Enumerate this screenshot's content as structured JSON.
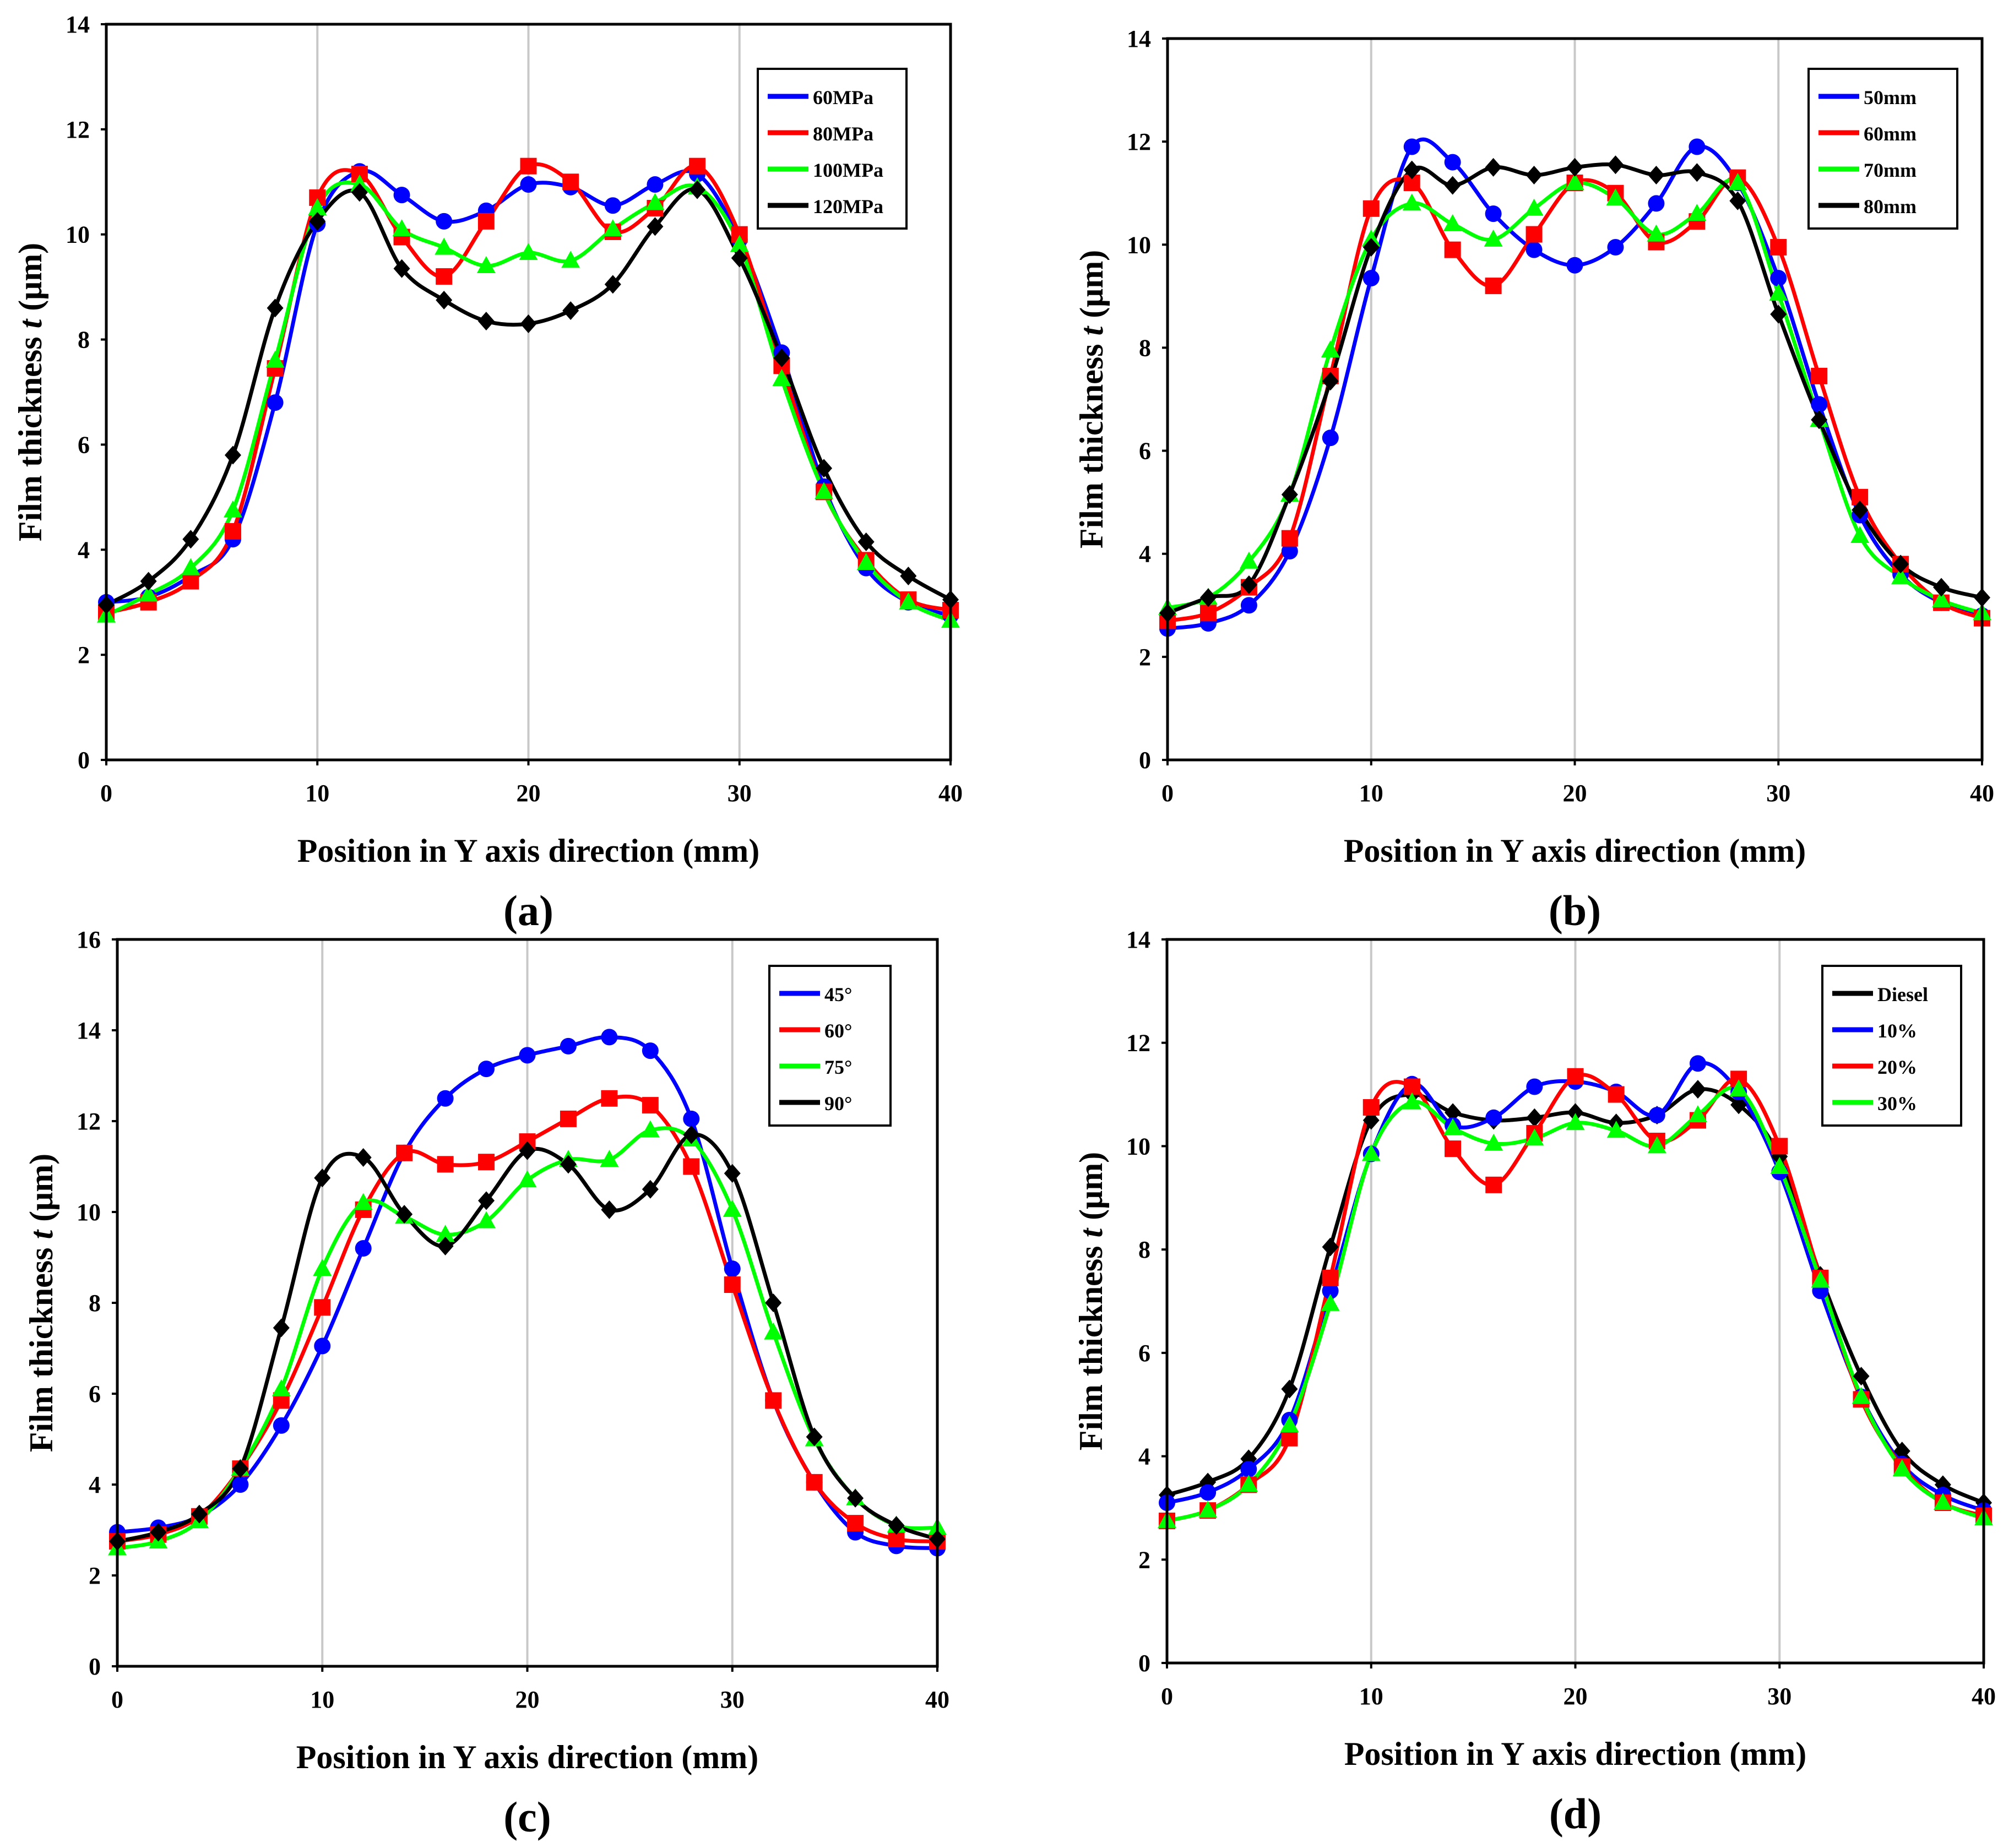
{
  "figure": {
    "panels": [
      "(a)",
      "(b)",
      "(c)",
      "(d)"
    ]
  },
  "chart_data": [
    {
      "type": "line",
      "panel_label": "(a)",
      "xlabel": "Position in Y axis direction (mm)",
      "ylabel_prefix": "Film thickness ",
      "ylabel_var": "t",
      "ylabel_suffix": " (μm)",
      "xlim": [
        0,
        40
      ],
      "ylim": [
        0,
        14
      ],
      "xticks": [
        0,
        10,
        20,
        30,
        40
      ],
      "yticks": [
        0,
        2,
        4,
        6,
        8,
        10,
        12,
        14
      ],
      "grid": "vertical",
      "legend_position": "top-right",
      "x": [
        0,
        2,
        4,
        6,
        8,
        10,
        12,
        14,
        16,
        18,
        20,
        22,
        24,
        26,
        28,
        30,
        32,
        34,
        36,
        38,
        40
      ],
      "series": [
        {
          "name": "60MPa",
          "color": "#0000ff",
          "marker": "circle",
          "values": [
            3.0,
            3.1,
            3.5,
            4.2,
            6.8,
            10.2,
            11.2,
            10.75,
            10.25,
            10.45,
            10.95,
            10.9,
            10.55,
            10.95,
            11.15,
            9.9,
            7.75,
            5.2,
            3.65,
            3.0,
            2.75
          ]
        },
        {
          "name": "80MPa",
          "color": "#ff0000",
          "marker": "square",
          "values": [
            2.8,
            3.0,
            3.4,
            4.35,
            7.45,
            10.7,
            11.15,
            9.95,
            9.2,
            10.25,
            11.3,
            11.0,
            10.05,
            10.5,
            11.3,
            10.0,
            7.5,
            5.1,
            3.8,
            3.05,
            2.85
          ]
        },
        {
          "name": "100MPa",
          "color": "#00ff00",
          "marker": "triangle",
          "values": [
            2.75,
            3.15,
            3.65,
            4.75,
            7.6,
            10.5,
            10.95,
            10.1,
            9.75,
            9.4,
            9.65,
            9.5,
            10.1,
            10.6,
            10.9,
            9.8,
            7.25,
            5.1,
            3.75,
            3.0,
            2.65
          ]
        },
        {
          "name": "120MPa",
          "color": "#000000",
          "marker": "diamond",
          "values": [
            2.95,
            3.4,
            4.2,
            5.8,
            8.6,
            10.25,
            10.8,
            9.35,
            8.75,
            8.35,
            8.3,
            8.55,
            9.05,
            10.15,
            10.85,
            9.55,
            7.65,
            5.55,
            4.15,
            3.5,
            3.05
          ]
        }
      ]
    },
    {
      "type": "line",
      "panel_label": "(b)",
      "xlabel": "Position in Y axis direction (mm)",
      "ylabel_prefix": "Film thickness ",
      "ylabel_var": "t",
      "ylabel_suffix": " (μm)",
      "xlim": [
        0,
        40
      ],
      "ylim": [
        0,
        14
      ],
      "xticks": [
        0,
        10,
        20,
        30,
        40
      ],
      "yticks": [
        0,
        2,
        4,
        6,
        8,
        10,
        12,
        14
      ],
      "grid": "vertical",
      "legend_position": "top-right",
      "x": [
        0,
        2,
        4,
        6,
        8,
        10,
        12,
        14,
        16,
        18,
        20,
        22,
        24,
        26,
        28,
        30,
        32,
        34,
        36,
        38,
        40
      ],
      "series": [
        {
          "name": "50mm",
          "color": "#0000ff",
          "marker": "circle",
          "values": [
            2.55,
            2.65,
            3.0,
            4.05,
            6.25,
            9.35,
            11.9,
            11.6,
            10.6,
            9.9,
            9.6,
            9.95,
            10.8,
            11.9,
            11.2,
            9.35,
            6.9,
            4.75,
            3.6,
            3.05,
            2.8
          ]
        },
        {
          "name": "60mm",
          "color": "#ff0000",
          "marker": "square",
          "values": [
            2.7,
            2.85,
            3.35,
            4.3,
            7.45,
            10.7,
            11.2,
            9.9,
            9.2,
            10.2,
            11.2,
            11.0,
            10.05,
            10.45,
            11.3,
            9.95,
            7.45,
            5.1,
            3.8,
            3.05,
            2.75
          ]
        },
        {
          "name": "70mm",
          "color": "#00ff00",
          "marker": "triangle",
          "values": [
            2.95,
            3.15,
            3.85,
            5.15,
            7.95,
            10.1,
            10.8,
            10.4,
            10.1,
            10.7,
            11.2,
            10.9,
            10.2,
            10.6,
            11.2,
            9.05,
            6.6,
            4.35,
            3.55,
            3.1,
            2.85
          ]
        },
        {
          "name": "80mm",
          "color": "#000000",
          "marker": "diamond",
          "values": [
            2.85,
            3.15,
            3.4,
            5.15,
            7.35,
            9.95,
            11.45,
            11.15,
            11.5,
            11.35,
            11.5,
            11.55,
            11.35,
            11.4,
            10.85,
            8.65,
            6.6,
            4.85,
            3.8,
            3.35,
            3.15
          ]
        }
      ]
    },
    {
      "type": "line",
      "panel_label": "(c)",
      "xlabel": "Position in Y axis direction (mm)",
      "ylabel_prefix": "Film thickness ",
      "ylabel_var": "t",
      "ylabel_suffix": " (μm)",
      "xlim": [
        0,
        40
      ],
      "ylim": [
        0,
        16
      ],
      "xticks": [
        0,
        10,
        20,
        30,
        40
      ],
      "yticks": [
        0,
        2,
        4,
        6,
        8,
        10,
        12,
        14,
        16
      ],
      "grid": "vertical",
      "legend_position": "top-right",
      "x": [
        0,
        2,
        4,
        6,
        8,
        10,
        12,
        14,
        16,
        18,
        20,
        22,
        24,
        26,
        28,
        30,
        32,
        34,
        36,
        38,
        40
      ],
      "series": [
        {
          "name": "45°",
          "color": "#0000ff",
          "marker": "circle",
          "values": [
            2.95,
            3.05,
            3.3,
            4.0,
            5.3,
            7.05,
            9.2,
            11.3,
            12.5,
            13.15,
            13.45,
            13.65,
            13.85,
            13.55,
            12.05,
            8.75,
            5.85,
            4.05,
            2.95,
            2.65,
            2.6
          ]
        },
        {
          "name": "60°",
          "color": "#ff0000",
          "marker": "square",
          "values": [
            2.75,
            2.9,
            3.3,
            4.35,
            5.85,
            7.9,
            10.05,
            11.3,
            11.05,
            11.1,
            11.55,
            12.05,
            12.5,
            12.35,
            11.0,
            8.4,
            5.85,
            4.05,
            3.15,
            2.8,
            2.75
          ]
        },
        {
          "name": "75°",
          "color": "#00ff00",
          "marker": "triangle",
          "values": [
            2.6,
            2.75,
            3.2,
            4.35,
            6.1,
            8.75,
            10.2,
            9.9,
            9.5,
            9.8,
            10.7,
            11.15,
            11.15,
            11.8,
            11.6,
            10.05,
            7.35,
            5.0,
            3.7,
            3.1,
            3.05
          ]
        },
        {
          "name": "90°",
          "color": "#000000",
          "marker": "diamond",
          "values": [
            2.75,
            2.95,
            3.35,
            4.35,
            7.45,
            10.75,
            11.2,
            9.95,
            9.25,
            10.25,
            11.35,
            11.05,
            10.05,
            10.5,
            11.7,
            10.85,
            8.0,
            5.05,
            3.7,
            3.1,
            2.8
          ]
        }
      ]
    },
    {
      "type": "line",
      "panel_label": "(d)",
      "xlabel": "Position in Y axis direction (mm)",
      "ylabel_prefix": "Film thickness ",
      "ylabel_var": "t",
      "ylabel_suffix": " (μm)",
      "xlim": [
        0,
        40
      ],
      "ylim": [
        0,
        14
      ],
      "xticks": [
        0,
        10,
        20,
        30,
        40
      ],
      "yticks": [
        0,
        2,
        4,
        6,
        8,
        10,
        12,
        14
      ],
      "grid": "vertical",
      "legend_position": "top-right",
      "x": [
        0,
        2,
        4,
        6,
        8,
        10,
        12,
        14,
        16,
        18,
        20,
        22,
        24,
        26,
        28,
        30,
        32,
        34,
        36,
        38,
        40
      ],
      "series": [
        {
          "name": "Diesel",
          "color": "#000000",
          "marker": "diamond",
          "values": [
            3.25,
            3.5,
            3.95,
            5.3,
            8.05,
            10.5,
            11.0,
            10.65,
            10.5,
            10.55,
            10.65,
            10.45,
            10.6,
            11.1,
            10.8,
            9.8,
            7.5,
            5.55,
            4.1,
            3.45,
            3.1
          ]
        },
        {
          "name": "10%",
          "color": "#0000ff",
          "marker": "circle",
          "values": [
            3.1,
            3.3,
            3.75,
            4.7,
            7.2,
            9.85,
            11.2,
            10.4,
            10.55,
            11.15,
            11.25,
            11.05,
            10.6,
            11.6,
            11.05,
            9.5,
            7.2,
            5.15,
            3.85,
            3.25,
            2.95
          ]
        },
        {
          "name": "20%",
          "color": "#ff0000",
          "marker": "square",
          "values": [
            2.75,
            2.95,
            3.45,
            4.35,
            7.45,
            10.75,
            11.15,
            9.95,
            9.25,
            10.25,
            11.35,
            11.0,
            10.1,
            10.5,
            11.3,
            10.0,
            7.45,
            5.1,
            3.8,
            3.1,
            2.85
          ]
        },
        {
          "name": "30%",
          "color": "#00ff00",
          "marker": "triangle",
          "values": [
            2.75,
            2.95,
            3.45,
            4.6,
            6.95,
            9.85,
            10.85,
            10.35,
            10.05,
            10.15,
            10.45,
            10.3,
            10.0,
            10.6,
            11.1,
            9.6,
            7.4,
            5.15,
            3.75,
            3.1,
            2.8
          ]
        }
      ]
    }
  ]
}
